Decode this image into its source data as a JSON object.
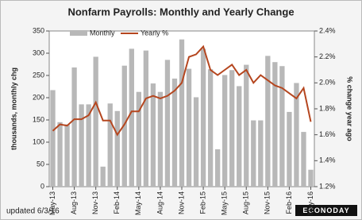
{
  "chart_data": {
    "type": "bar_line",
    "title": "Nonfarm Payrolls: Monthly and Yearly Change",
    "ylabel": "thousands, monthly chg",
    "y2label": "% change year ago",
    "footer": "updated 6/3/16",
    "logo": "ECONODAY",
    "categories": [
      "May-13",
      null,
      null,
      "Aug-13",
      null,
      null,
      "Nov-13",
      null,
      null,
      "Feb-14",
      null,
      null,
      "May-14",
      null,
      null,
      "Aug-14",
      null,
      null,
      "Nov-14",
      null,
      null,
      "Feb-15",
      null,
      null,
      "May-15",
      null,
      null,
      "Aug-15",
      null,
      null,
      "Nov-15",
      null,
      null,
      "Feb-16",
      null,
      null,
      "May-16"
    ],
    "series": [
      {
        "name": "Monthly",
        "type": "bar",
        "color": "#b8b8b8",
        "values": [
          217,
          145,
          140,
          268,
          185,
          185,
          292,
          45,
          187,
          170,
          272,
          310,
          213,
          306,
          232,
          213,
          285,
          243,
          331,
          265,
          201,
          310,
          264,
          84,
          251,
          262,
          226,
          274,
          149,
          149,
          294,
          280,
          271,
          168,
          233,
          123,
          38
        ]
      },
      {
        "name": "Yearly %",
        "type": "line",
        "axis": "y2",
        "color": "#b5461f",
        "values": [
          1.63,
          1.68,
          1.67,
          1.72,
          1.72,
          1.75,
          1.85,
          1.71,
          1.71,
          1.6,
          1.68,
          1.78,
          1.78,
          1.88,
          1.9,
          1.88,
          1.9,
          1.94,
          2.0,
          2.2,
          2.22,
          2.28,
          2.1,
          2.06,
          2.1,
          2.14,
          2.06,
          2.1,
          2.0,
          2.06,
          2.02,
          1.98,
          1.96,
          1.92,
          1.88,
          1.96,
          1.7
        ]
      }
    ],
    "ylim": [
      0,
      350
    ],
    "yticks": [
      0,
      50,
      100,
      150,
      200,
      250,
      300,
      350
    ],
    "y2lim": [
      1.2,
      2.4
    ],
    "y2ticks": [
      {
        "value": 1.2,
        "label": "1.2%"
      },
      {
        "value": 1.4,
        "label": "1.4%"
      },
      {
        "value": 1.6,
        "label": "1.6%"
      },
      {
        "value": 1.8,
        "label": "1.8%"
      },
      {
        "value": 2.0,
        "label": "2.0%"
      },
      {
        "value": 2.2,
        "label": "2.2%"
      },
      {
        "value": 2.4,
        "label": "2.4%"
      }
    ]
  }
}
